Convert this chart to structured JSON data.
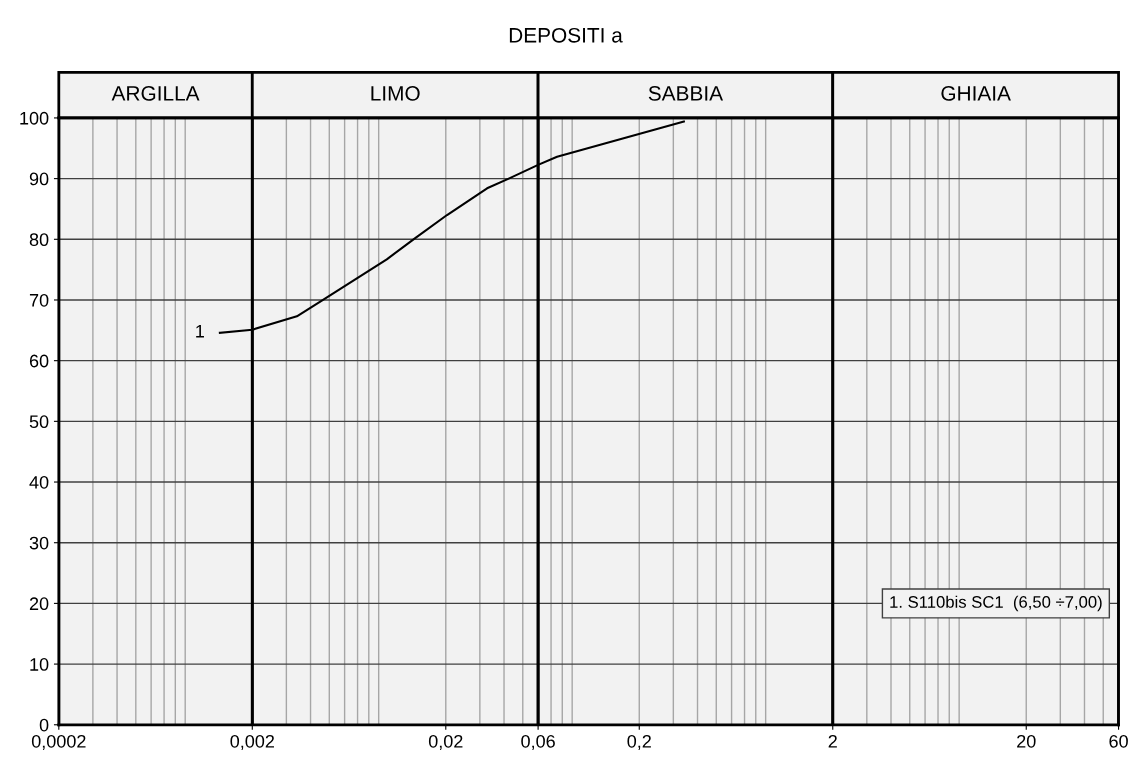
{
  "chart_data": {
    "type": "line",
    "title": "DEPOSITI a",
    "x": [
      0.00136,
      0.002,
      0.0034,
      0.00464,
      0.00991,
      0.0139,
      0.0203,
      0.0327,
      0.0423,
      0.0604,
      0.0752,
      0.34
    ],
    "series": [
      {
        "name": "1",
        "color": "#000000",
        "values": [
          64.6,
          65.1,
          67.3,
          70.0,
          76.7,
          80.2,
          84.0,
          88.4,
          90.0,
          92.3,
          93.6,
          99.4
        ]
      }
    ],
    "log": "x",
    "xlim": [
      0.0002,
      60
    ],
    "ylim": [
      0,
      100
    ],
    "xticks": [
      {
        "value": 0.0002,
        "label": "0,0002"
      },
      {
        "value": 0.002,
        "label": "0,002"
      },
      {
        "value": 0.02,
        "label": "0,02"
      },
      {
        "value": 0.06,
        "label": "0,06"
      },
      {
        "value": 0.2,
        "label": "0,2"
      },
      {
        "value": 2,
        "label": "2"
      },
      {
        "value": 20,
        "label": "20"
      },
      {
        "value": 60,
        "label": "60"
      }
    ],
    "yticks": [
      0,
      10,
      20,
      30,
      40,
      50,
      60,
      70,
      80,
      90,
      100
    ],
    "grid": true,
    "legend": false,
    "marker": "none",
    "line_style": "solid",
    "bands": [
      {
        "axis": "x",
        "from": 0.0002,
        "to": 0.002,
        "label": "ARGILLA",
        "color": "#f2f2f2"
      },
      {
        "axis": "x",
        "from": 0.002,
        "to": 0.06,
        "label": "LIMO",
        "color": "#f2f2f2"
      },
      {
        "axis": "x",
        "from": 0.06,
        "to": 2,
        "label": "SABBIA",
        "color": "#f2f2f2"
      },
      {
        "axis": "x",
        "from": 2,
        "to": 60,
        "label": "GHIAIA",
        "color": "#f2f2f2"
      }
    ],
    "annotations": [
      "1. S110bis SC1  (6,50 ÷7,00)"
    ]
  }
}
